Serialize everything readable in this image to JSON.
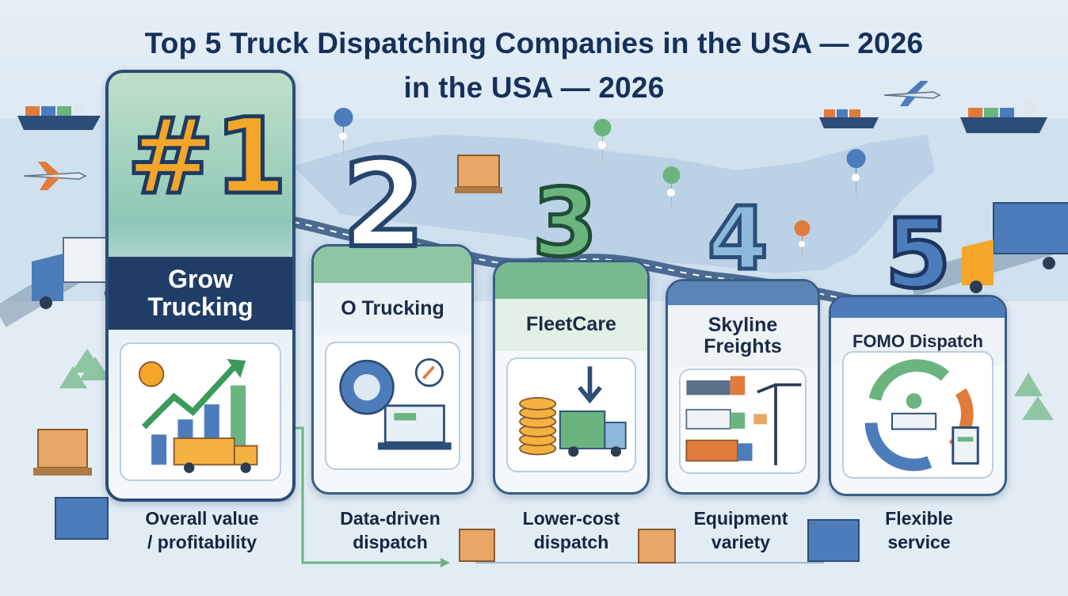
{
  "title_line_1": "Top 5 Truck Dispatching Companies in the USA — 2026",
  "title_line_2": "in the USA — 2026",
  "colors": {
    "navy": "#1f3d66",
    "green": "#6ab57f",
    "orange": "#f4a62a",
    "blue": "#4d7cbb",
    "background": "#dde9f2"
  },
  "companies": [
    {
      "rank": "#1",
      "name_line_1": "Grow",
      "name_line_2": "Trucking",
      "caption_line_1": "Overall value",
      "caption_line_2": "/ profitability",
      "icon": "profit-chart-truck-icon"
    },
    {
      "rank": "2",
      "name_line_1": "O Trucking",
      "name_line_2": "",
      "caption_line_1": "Data-driven",
      "caption_line_2": "dispatch",
      "icon": "data-gear-laptop-icon"
    },
    {
      "rank": "3",
      "name_line_1": "FleetCare",
      "name_line_2": "",
      "caption_line_1": "Lower-cost",
      "caption_line_2": "dispatch",
      "icon": "coins-truck-icon"
    },
    {
      "rank": "4",
      "name_line_1": "Skyline",
      "name_line_2": "Freights",
      "caption_line_1": "Equipment",
      "caption_line_2": "variety",
      "icon": "trucks-crane-icon"
    },
    {
      "rank": "5",
      "name_line_1": "FOMO Dispatch",
      "name_line_2": "",
      "caption_line_1": "Flexible",
      "caption_line_2": "service",
      "icon": "cycle-desk-tablet-icon"
    }
  ]
}
